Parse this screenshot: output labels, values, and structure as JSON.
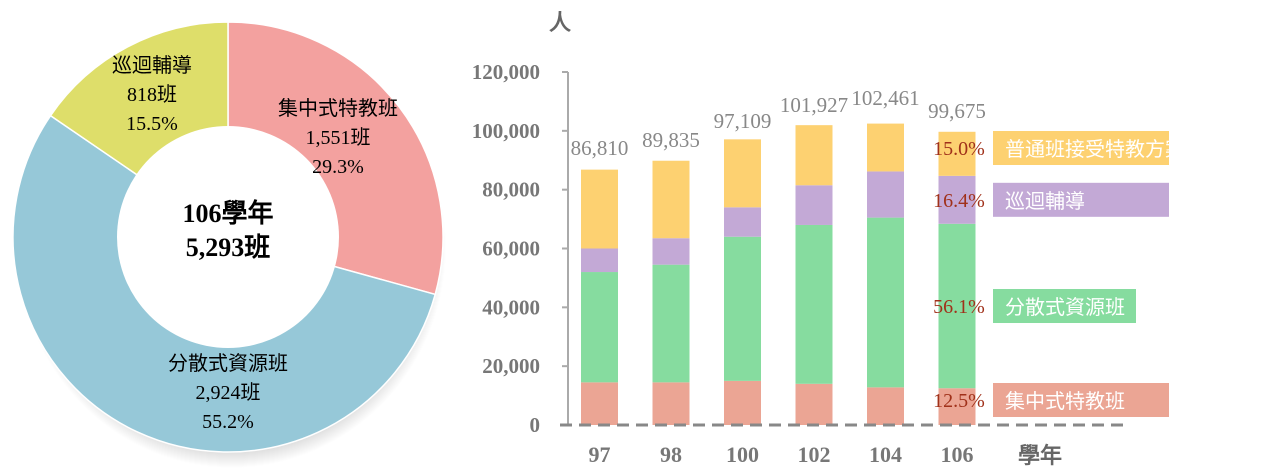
{
  "chart_data": [
    {
      "type": "pie",
      "center_label": {
        "line1": "106學年",
        "line2": "5,293班"
      },
      "slices": [
        {
          "name": "集中式特教班",
          "count_label": "1,551班",
          "percent_label": "29.3%",
          "value": 1551,
          "color": "#f3a19f"
        },
        {
          "name": "分散式資源班",
          "count_label": "2,924班",
          "percent_label": "55.2%",
          "value": 2924,
          "color": "#96c8d8"
        },
        {
          "name": "巡迴輔導",
          "count_label": "818班",
          "percent_label": "15.5%",
          "value": 818,
          "color": "#dede6a"
        }
      ]
    },
    {
      "type": "bar",
      "stacked": true,
      "ylabel": "人",
      "xlabel": "學年",
      "ylim": [
        0,
        120000
      ],
      "yticks": [
        0,
        20000,
        40000,
        60000,
        80000,
        100000,
        120000
      ],
      "ytick_labels": [
        "0",
        "20,000",
        "40,000",
        "60,000",
        "80,000",
        "100,000",
        "120,000"
      ],
      "categories": [
        "97",
        "98",
        "100",
        "102",
        "104",
        "106"
      ],
      "totals": [
        86810,
        89835,
        97109,
        101927,
        102461,
        99675
      ],
      "total_labels": [
        "86,810",
        "89,835",
        "97,109",
        "101,927",
        "102,461",
        "99,675"
      ],
      "series": [
        {
          "name": "集中式特教班",
          "values": [
            14500,
            14500,
            15000,
            14000,
            12800,
            12500
          ],
          "color": "#eba594"
        },
        {
          "name": "分散式資源班",
          "values": [
            37500,
            40000,
            49000,
            54000,
            57700,
            55900
          ],
          "color": "#86dc9f"
        },
        {
          "name": "巡迴輔導",
          "values": [
            8000,
            9000,
            10000,
            13500,
            15700,
            16300
          ],
          "color": "#c3a9d6"
        },
        {
          "name": "普通班接受特教方案",
          "values": [
            26810,
            26335,
            23109,
            20427,
            16261,
            14975
          ],
          "color": "#fdd171"
        }
      ],
      "last_bar_percent_labels": [
        "12.5%",
        "56.1%",
        "16.4%",
        "15.0%"
      ],
      "percent_label_color": "#a0311a"
    }
  ]
}
